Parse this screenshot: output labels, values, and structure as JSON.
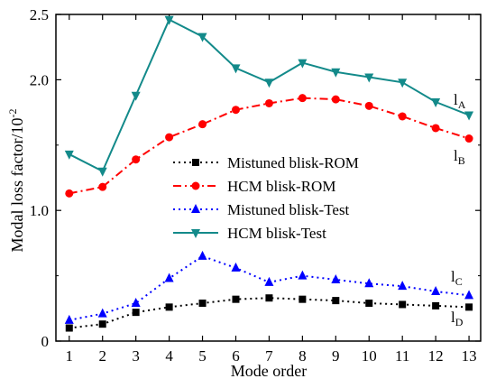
{
  "chart_data": {
    "type": "line",
    "xlabel": "Mode order",
    "ylabel": "Modal loss factor/10",
    "ylabel_sup": "-2",
    "xlim": [
      0.6,
      13.35
    ],
    "ylim": [
      0,
      2.5
    ],
    "x_ticks": [
      "1",
      "2",
      "3",
      "4",
      "5",
      "6",
      "7",
      "8",
      "9",
      "10",
      "11",
      "12",
      "13"
    ],
    "y_ticks": [
      {
        "value": 0,
        "label": "0"
      },
      {
        "value": 1.0,
        "label": "1.0"
      },
      {
        "value": 2.0,
        "label": "2.0"
      },
      {
        "value": 2.5,
        "label": "2.5"
      }
    ],
    "grid": false,
    "legend_position": "center",
    "x": [
      1,
      2,
      3,
      4,
      5,
      6,
      7,
      8,
      9,
      10,
      11,
      12,
      13
    ],
    "series": [
      {
        "name": "Mistuned blisk-ROM",
        "color": "#000000",
        "marker": "square",
        "line": "dot",
        "values": [
          0.1,
          0.13,
          0.22,
          0.26,
          0.29,
          0.32,
          0.33,
          0.32,
          0.31,
          0.29,
          0.28,
          0.27,
          0.26
        ],
        "end_label": "l",
        "end_label_sub": "D"
      },
      {
        "name": "HCM blisk-ROM",
        "color": "#ff0000",
        "marker": "circle",
        "line": "dashdot",
        "values": [
          1.13,
          1.18,
          1.39,
          1.56,
          1.66,
          1.77,
          1.82,
          1.86,
          1.85,
          1.8,
          1.72,
          1.63,
          1.55
        ],
        "end_label": "l",
        "end_label_sub": "B"
      },
      {
        "name": "Mistuned blisk-Test",
        "color": "#0000ff",
        "marker": "triangle-up",
        "line": "dot",
        "values": [
          0.16,
          0.21,
          0.29,
          0.48,
          0.65,
          0.56,
          0.45,
          0.5,
          0.47,
          0.44,
          0.42,
          0.38,
          0.35
        ],
        "end_label": "l",
        "end_label_sub": "C"
      },
      {
        "name": "HCM blisk-Test",
        "color": "#138a8a",
        "marker": "triangle-down",
        "line": "solid",
        "values": [
          1.43,
          1.3,
          1.88,
          2.46,
          2.33,
          2.09,
          1.98,
          2.13,
          2.06,
          2.02,
          1.98,
          1.83,
          1.73
        ],
        "end_label": "l",
        "end_label_sub": "A"
      }
    ]
  }
}
